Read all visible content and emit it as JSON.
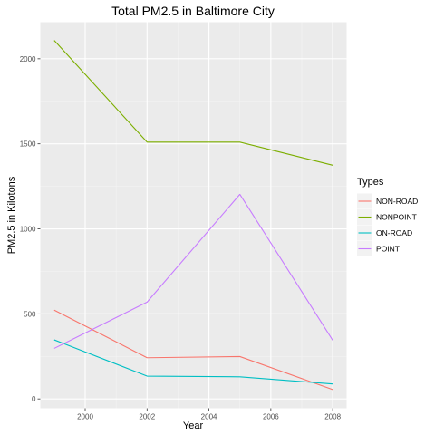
{
  "chart_data": {
    "type": "line",
    "title": "Total PM2.5 in Baltimore City",
    "xlabel": "Year",
    "ylabel": "PM2.5 in Kilotons",
    "x": [
      1999,
      2002,
      2005,
      2008
    ],
    "xlim": [
      1998.55,
      2008.45
    ],
    "ylim": [
      -55,
      2215
    ],
    "x_ticks": [
      2000,
      2002,
      2004,
      2006,
      2008
    ],
    "y_ticks": [
      0,
      500,
      1000,
      1500,
      2000
    ],
    "grid": true,
    "legend_title": "Types",
    "legend_position": "right",
    "series": [
      {
        "name": "NON-ROAD",
        "color": "#F8766D",
        "values": [
          522,
          242,
          249,
          55
        ]
      },
      {
        "name": "NONPOINT",
        "color": "#7CAE00",
        "values": [
          2108,
          1510,
          1510,
          1374
        ]
      },
      {
        "name": "ON-ROAD",
        "color": "#00BFC4",
        "values": [
          347,
          134,
          130,
          88
        ]
      },
      {
        "name": "POINT",
        "color": "#C77CFF",
        "values": [
          297,
          569,
          1203,
          345
        ]
      }
    ]
  }
}
